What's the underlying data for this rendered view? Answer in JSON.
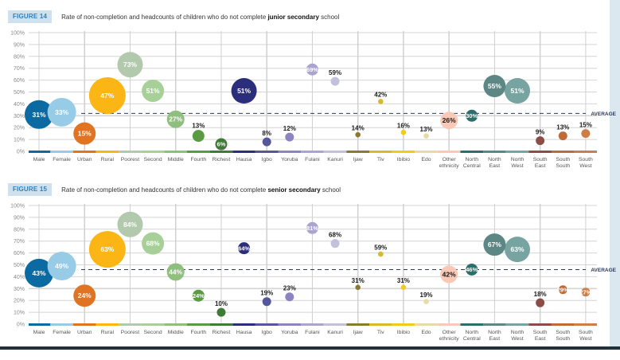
{
  "chart_data": [
    {
      "type": "scatter",
      "subtype": "bubble",
      "figure_label": "FIGURE 14",
      "title_prefix": "Rate of non-completion and headcounts of children who do not complete ",
      "title_bold": "junior secondary",
      "title_suffix": " school",
      "ylim": [
        0,
        100
      ],
      "yticks": [
        "0%",
        "10%",
        "20%",
        "30%",
        "40%",
        "50%",
        "60%",
        "70%",
        "80%",
        "90%",
        "100%"
      ],
      "grid": true,
      "average_label": "AVERAGE",
      "average_value": 32,
      "categories": [
        {
          "name": "Male",
          "lines": [
            "Male"
          ],
          "value": 31,
          "label": "31%",
          "size": "xl",
          "color": "#0a6aa1",
          "label_inside": true
        },
        {
          "name": "Female",
          "lines": [
            "Female"
          ],
          "value": 33,
          "label": "33%",
          "size": "xl",
          "color": "#97cbe6",
          "label_inside": true
        },
        {
          "name": "Urban",
          "lines": [
            "Urban"
          ],
          "value": 15,
          "label": "15%",
          "size": "m",
          "color": "#e07423",
          "label_inside": true
        },
        {
          "name": "Rural",
          "lines": [
            "Rural"
          ],
          "value": 47,
          "label": "47%",
          "size": "xxl",
          "color": "#fbb615",
          "label_inside": true
        },
        {
          "name": "Poorest",
          "lines": [
            "Poorest"
          ],
          "value": 73,
          "label": "73%",
          "size": "l",
          "color": "#b3c9ad",
          "label_inside": true
        },
        {
          "name": "Second",
          "lines": [
            "Second"
          ],
          "value": 51,
          "label": "51%",
          "size": "m",
          "color": "#a7cf98",
          "label_inside": true
        },
        {
          "name": "Middle",
          "lines": [
            "Middle"
          ],
          "value": 27,
          "label": "27%",
          "size": "s",
          "color": "#8fbf7e",
          "label_inside": true
        },
        {
          "name": "Fourth",
          "lines": [
            "Fourth"
          ],
          "value": 13,
          "label": "13%",
          "size": "xs",
          "color": "#5a9a42",
          "label_inside": false
        },
        {
          "name": "Richest",
          "lines": [
            "Richest"
          ],
          "value": 6,
          "label": "6%",
          "size": "xs",
          "color": "#3f7a37",
          "label_inside": true
        },
        {
          "name": "Hausa",
          "lines": [
            "Hausa"
          ],
          "value": 51,
          "label": "51%",
          "size": "l",
          "color": "#2b2f7b",
          "label_inside": true
        },
        {
          "name": "Igbo",
          "lines": [
            "Igbo"
          ],
          "value": 8,
          "label": "8%",
          "size": "xxs",
          "color": "#55579a",
          "label_inside": false
        },
        {
          "name": "Yoruba",
          "lines": [
            "Yoruba"
          ],
          "value": 12,
          "label": "12%",
          "size": "xxs",
          "color": "#8a85bf",
          "label_inside": false
        },
        {
          "name": "Fulani",
          "lines": [
            "Fulani"
          ],
          "value": 69,
          "label": "69%",
          "size": "xs",
          "color": "#aaa4cf",
          "label_inside": true
        },
        {
          "name": "Kanuri",
          "lines": [
            "Kanuri"
          ],
          "value": 59,
          "label": "59%",
          "size": "xxs",
          "color": "#c3c0de",
          "label_inside": false
        },
        {
          "name": "Ijaw",
          "lines": [
            "Ijaw"
          ],
          "value": 14,
          "label": "14%",
          "size": "dot",
          "color": "#8a7a2e",
          "label_inside": false
        },
        {
          "name": "Tiv",
          "lines": [
            "Tiv"
          ],
          "value": 42,
          "label": "42%",
          "size": "dot",
          "color": "#d7b92b",
          "label_inside": false
        },
        {
          "name": "Ibibio",
          "lines": [
            "Ibibio"
          ],
          "value": 16,
          "label": "16%",
          "size": "dot",
          "color": "#efcb1a",
          "label_inside": false
        },
        {
          "name": "Edo",
          "lines": [
            "Edo"
          ],
          "value": 13,
          "label": "13%",
          "size": "dot",
          "color": "#e6dba8",
          "label_inside": false
        },
        {
          "name": "Other ethnicity",
          "lines": [
            "Other",
            "ethnicity"
          ],
          "value": 26,
          "label": "26%",
          "size": "s",
          "color": "#f9c8b7",
          "label_inside": true,
          "label_dark": true
        },
        {
          "name": "North Central",
          "lines": [
            "North",
            "Central"
          ],
          "value": 30,
          "label": "30%",
          "size": "xs",
          "color": "#2b6f6c",
          "label_inside": true
        },
        {
          "name": "North East",
          "lines": [
            "North",
            "East"
          ],
          "value": 55,
          "label": "55%",
          "size": "m",
          "color": "#5d8784",
          "label_inside": true
        },
        {
          "name": "North West",
          "lines": [
            "North",
            "West"
          ],
          "value": 51,
          "label": "51%",
          "size": "l",
          "color": "#77a3a1",
          "label_inside": true
        },
        {
          "name": "South East",
          "lines": [
            "South",
            "East"
          ],
          "value": 9,
          "label": "9%",
          "size": "xxs",
          "color": "#8d4d47",
          "label_inside": false
        },
        {
          "name": "South South",
          "lines": [
            "South",
            "South"
          ],
          "value": 13,
          "label": "13%",
          "size": "xxs",
          "color": "#c06a38",
          "label_inside": false
        },
        {
          "name": "South West",
          "lines": [
            "South",
            "West"
          ],
          "value": 15,
          "label": "15%",
          "size": "xxs",
          "color": "#cc7e48",
          "label_inside": false
        }
      ]
    },
    {
      "type": "scatter",
      "subtype": "bubble",
      "figure_label": "FIGURE 15",
      "title_prefix": "Rate of non-completion and headcounts of children who do not complete ",
      "title_bold": "senior secondary",
      "title_suffix": " school",
      "ylim": [
        0,
        100
      ],
      "yticks": [
        "0%",
        "10%",
        "20%",
        "30%",
        "40%",
        "50%",
        "60%",
        "70%",
        "80%",
        "90%",
        "100%"
      ],
      "grid": true,
      "average_label": "AVERAGE",
      "average_value": 46,
      "categories": [
        {
          "name": "Male",
          "lines": [
            "Male"
          ],
          "value": 43,
          "label": "43%",
          "size": "xl",
          "color": "#0a6aa1",
          "label_inside": true
        },
        {
          "name": "Female",
          "lines": [
            "Female"
          ],
          "value": 49,
          "label": "49%",
          "size": "xl",
          "color": "#97cbe6",
          "label_inside": true
        },
        {
          "name": "Urban",
          "lines": [
            "Urban"
          ],
          "value": 24,
          "label": "24%",
          "size": "m",
          "color": "#e07423",
          "label_inside": true
        },
        {
          "name": "Rural",
          "lines": [
            "Rural"
          ],
          "value": 63,
          "label": "63%",
          "size": "xxl",
          "color": "#fbb615",
          "label_inside": true
        },
        {
          "name": "Poorest",
          "lines": [
            "Poorest"
          ],
          "value": 84,
          "label": "84%",
          "size": "l",
          "color": "#b3c9ad",
          "label_inside": true
        },
        {
          "name": "Second",
          "lines": [
            "Second"
          ],
          "value": 68,
          "label": "68%",
          "size": "m",
          "color": "#a7cf98",
          "label_inside": true
        },
        {
          "name": "Middle",
          "lines": [
            "Middle"
          ],
          "value": 44,
          "label": "44%",
          "size": "s",
          "color": "#8fbf7e",
          "label_inside": true
        },
        {
          "name": "Fourth",
          "lines": [
            "Fourth"
          ],
          "value": 24,
          "label": "24%",
          "size": "xs",
          "color": "#5a9a42",
          "label_inside": true
        },
        {
          "name": "Richest",
          "lines": [
            "Richest"
          ],
          "value": 10,
          "label": "10%",
          "size": "xxs",
          "color": "#3f7a37",
          "label_inside": false
        },
        {
          "name": "Hausa",
          "lines": [
            "Hausa"
          ],
          "value": 64,
          "label": "64%",
          "size": "xs",
          "color": "#2b2f7b",
          "label_inside": true
        },
        {
          "name": "Igbo",
          "lines": [
            "Igbo"
          ],
          "value": 19,
          "label": "19%",
          "size": "xxs",
          "color": "#55579a",
          "label_inside": false
        },
        {
          "name": "Yoruba",
          "lines": [
            "Yoruba"
          ],
          "value": 23,
          "label": "23%",
          "size": "xxs",
          "color": "#8a85bf",
          "label_inside": false
        },
        {
          "name": "Fulani",
          "lines": [
            "Fulani"
          ],
          "value": 81,
          "label": "81%",
          "size": "xs",
          "color": "#aaa4cf",
          "label_inside": true
        },
        {
          "name": "Kanuri",
          "lines": [
            "Kanuri"
          ],
          "value": 68,
          "label": "68%",
          "size": "xxs",
          "color": "#c3c0de",
          "label_inside": false
        },
        {
          "name": "Ijaw",
          "lines": [
            "Ijaw"
          ],
          "value": 31,
          "label": "31%",
          "size": "dot",
          "color": "#8a7a2e",
          "label_inside": false
        },
        {
          "name": "Tiv",
          "lines": [
            "Tiv"
          ],
          "value": 59,
          "label": "59%",
          "size": "dot",
          "color": "#d7b92b",
          "label_inside": false
        },
        {
          "name": "Ibibio",
          "lines": [
            "Ibibio"
          ],
          "value": 31,
          "label": "31%",
          "size": "dot",
          "color": "#efcb1a",
          "label_inside": false
        },
        {
          "name": "Edo",
          "lines": [
            "Edo"
          ],
          "value": 19,
          "label": "19%",
          "size": "dot",
          "color": "#e6dba8",
          "label_inside": false
        },
        {
          "name": "Other ethnicity",
          "lines": [
            "Other",
            "ethnicity"
          ],
          "value": 42,
          "label": "42%",
          "size": "s",
          "color": "#f9c8b7",
          "label_inside": true,
          "label_dark": true
        },
        {
          "name": "North Central",
          "lines": [
            "North",
            "Central"
          ],
          "value": 46,
          "label": "46%",
          "size": "xs",
          "color": "#2b6f6c",
          "label_inside": true
        },
        {
          "name": "North East",
          "lines": [
            "North",
            "East"
          ],
          "value": 67,
          "label": "67%",
          "size": "m",
          "color": "#5d8784",
          "label_inside": true
        },
        {
          "name": "North West",
          "lines": [
            "North",
            "West"
          ],
          "value": 63,
          "label": "63%",
          "size": "l",
          "color": "#77a3a1",
          "label_inside": true
        },
        {
          "name": "South East",
          "lines": [
            "South",
            "East"
          ],
          "value": 18,
          "label": "18%",
          "size": "xxs",
          "color": "#8d4d47",
          "label_inside": false
        },
        {
          "name": "South South",
          "lines": [
            "South",
            "South"
          ],
          "value": 29,
          "label": "29%",
          "size": "xxs",
          "color": "#c06a38",
          "label_inside": true
        },
        {
          "name": "South West",
          "lines": [
            "South",
            "West"
          ],
          "value": 27,
          "label": "27%",
          "size": "xxs",
          "color": "#cc7e48",
          "label_inside": true
        }
      ]
    }
  ]
}
